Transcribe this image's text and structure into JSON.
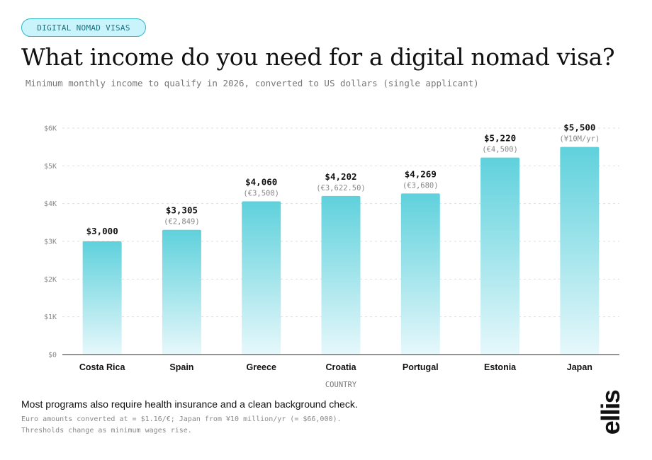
{
  "tag": "DIGITAL NOMAD VISAS",
  "title": "What income do you need for a digital nomad visa?",
  "subtitle": "Minimum monthly income to qualify in 2026, converted to US dollars (single applicant)",
  "note": "Most programs also require health insurance and a clean background check.",
  "footnotes": [
    "Euro amounts converted at = $1.16/€; Japan from ¥10 million/yr (= $66,000).",
    "Thresholds change as minimum wages rise."
  ],
  "logo": "ellis",
  "colors": {
    "bar_top": "#5fd1dc",
    "bar_bottom": "#e6f8fb",
    "tag_bg": "#c9f4fb",
    "tag_border": "#2fb7c6"
  },
  "chart_data": {
    "type": "bar",
    "xlabel": "COUNTRY",
    "ylabel": "",
    "ylim": [
      0,
      6000
    ],
    "y_ticks": [
      0,
      1000,
      2000,
      3000,
      4000,
      5000,
      6000
    ],
    "y_tick_labels": [
      "$0",
      "$1K",
      "$2K",
      "$3K",
      "$4K",
      "$5K",
      "$6K"
    ],
    "grid": true,
    "categories": [
      "Costa Rica",
      "Spain",
      "Greece",
      "Croatia",
      "Portugal",
      "Estonia",
      "Japan"
    ],
    "values": [
      3000,
      3305,
      4060,
      4202,
      4269,
      5220,
      5500
    ],
    "value_labels": [
      "$3,000",
      "$3,305",
      "$4,060",
      "$4,202",
      "$4,269",
      "$5,220",
      "$5,500"
    ],
    "sub_labels": [
      "",
      "(€2,849)",
      "(€3,500)",
      "(€3,622.50)",
      "(€3,680)",
      "(€4,500)",
      "(¥10M/yr)"
    ]
  }
}
